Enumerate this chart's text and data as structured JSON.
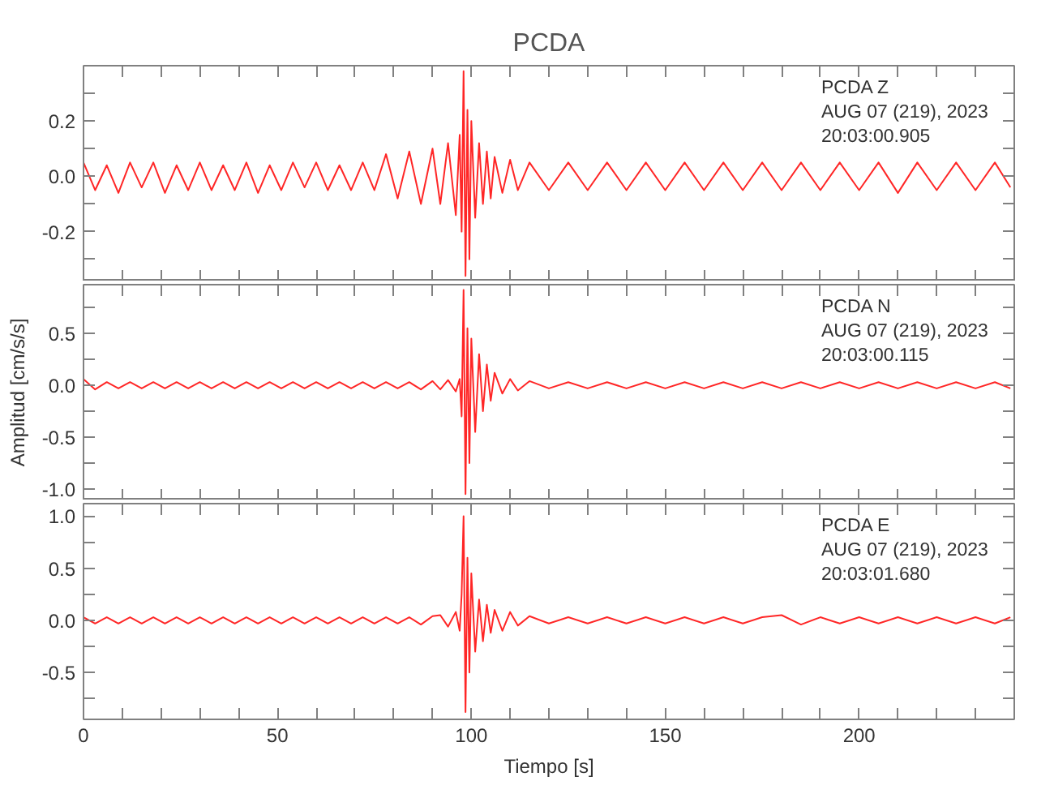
{
  "chart_data": [
    {
      "type": "line",
      "title": "PCDA",
      "tick_labels": "y",
      "grid": false,
      "marker": "none",
      "line_style": "solid",
      "annotations": [
        "PCDA   Z",
        "AUG 07 (219), 2023",
        "20:03:00.905"
      ],
      "xlim": [
        0,
        240
      ],
      "xticks": [
        0,
        {
          "value": 10,
          "label": null
        },
        {
          "value": 20,
          "label": null
        },
        {
          "value": 30,
          "label": null
        },
        {
          "value": 40,
          "label": null
        },
        50,
        {
          "value": 60,
          "label": null
        },
        {
          "value": 70,
          "label": null
        },
        {
          "value": 80,
          "label": null
        },
        {
          "value": 90,
          "label": null
        },
        100,
        {
          "value": 110,
          "label": null
        },
        {
          "value": 120,
          "label": null
        },
        {
          "value": 130,
          "label": null
        },
        {
          "value": 140,
          "label": null
        },
        150,
        {
          "value": 160,
          "label": null
        },
        {
          "value": 170,
          "label": null
        },
        {
          "value": 180,
          "label": null
        },
        {
          "value": 190,
          "label": null
        },
        200,
        {
          "value": 210,
          "label": null
        },
        {
          "value": 220,
          "label": null
        },
        {
          "value": 230,
          "label": null
        }
      ],
      "ylim": [
        -0.38,
        0.4
      ],
      "yticks": [
        {
          "value": -0.3,
          "label": null
        },
        {
          "value": -0.2,
          "label": "-0.2"
        },
        {
          "value": -0.1,
          "label": null
        },
        {
          "value": 0,
          "label": "0.0"
        },
        {
          "value": 0.1,
          "label": null
        },
        {
          "value": 0.2,
          "label": "0.2"
        },
        {
          "value": 0.3,
          "label": null
        }
      ],
      "x": [
        0,
        3,
        6,
        9,
        12,
        15,
        18,
        21,
        24,
        27,
        30,
        33,
        36,
        39,
        42,
        45,
        48,
        51,
        54,
        57,
        60,
        63,
        66,
        69,
        72,
        75,
        78,
        81,
        84,
        87,
        90,
        92,
        94,
        96,
        97,
        97.5,
        98,
        98.5,
        99,
        99.5,
        100,
        101,
        102,
        103,
        104,
        105,
        106,
        108,
        110,
        112,
        115,
        120,
        125,
        130,
        135,
        140,
        145,
        150,
        155,
        160,
        165,
        170,
        175,
        180,
        185,
        190,
        195,
        200,
        205,
        210,
        215,
        220,
        225,
        230,
        235,
        239
      ],
      "series": [
        {
          "color": "#ff0000",
          "values": [
            0.05,
            -0.05,
            0.04,
            -0.06,
            0.05,
            -0.04,
            0.05,
            -0.06,
            0.04,
            -0.05,
            0.05,
            -0.05,
            0.04,
            -0.05,
            0.05,
            -0.06,
            0.04,
            -0.05,
            0.05,
            -0.04,
            0.05,
            -0.05,
            0.04,
            -0.05,
            0.05,
            -0.05,
            0.08,
            -0.08,
            0.09,
            -0.1,
            0.1,
            -0.1,
            0.12,
            -0.14,
            0.15,
            -0.2,
            0.38,
            -0.36,
            0.24,
            -0.3,
            0.2,
            -0.15,
            0.12,
            -0.1,
            0.09,
            -0.08,
            0.07,
            -0.06,
            0.06,
            -0.05,
            0.05,
            -0.05,
            0.05,
            -0.05,
            0.05,
            -0.05,
            0.05,
            -0.05,
            0.05,
            -0.05,
            0.05,
            -0.05,
            0.05,
            -0.05,
            0.05,
            -0.05,
            0.05,
            -0.05,
            0.05,
            -0.06,
            0.05,
            -0.05,
            0.05,
            -0.05,
            0.05,
            -0.04
          ]
        }
      ]
    },
    {
      "type": "line",
      "ylabel": "Amplitud [cm/s/s]",
      "tick_labels": "y",
      "grid": false,
      "marker": "none",
      "line_style": "solid",
      "annotations": [
        "PCDA   N",
        "AUG 07 (219), 2023",
        "20:03:00.115"
      ],
      "xlim": [
        0,
        240
      ],
      "xticks": [
        0,
        {
          "value": 10,
          "label": null
        },
        {
          "value": 20,
          "label": null
        },
        {
          "value": 30,
          "label": null
        },
        {
          "value": 40,
          "label": null
        },
        50,
        {
          "value": 60,
          "label": null
        },
        {
          "value": 70,
          "label": null
        },
        {
          "value": 80,
          "label": null
        },
        {
          "value": 90,
          "label": null
        },
        100,
        {
          "value": 110,
          "label": null
        },
        {
          "value": 120,
          "label": null
        },
        {
          "value": 130,
          "label": null
        },
        {
          "value": 140,
          "label": null
        },
        150,
        {
          "value": 160,
          "label": null
        },
        {
          "value": 170,
          "label": null
        },
        {
          "value": 180,
          "label": null
        },
        {
          "value": 190,
          "label": null
        },
        200,
        {
          "value": 210,
          "label": null
        },
        {
          "value": 220,
          "label": null
        },
        {
          "value": 230,
          "label": null
        }
      ],
      "ylim": [
        -1.11,
        0.97
      ],
      "yticks": [
        {
          "value": -1,
          "label": "-1.0"
        },
        {
          "value": -0.75,
          "label": null
        },
        {
          "value": -0.5,
          "label": "-0.5"
        },
        {
          "value": -0.25,
          "label": null
        },
        {
          "value": 0,
          "label": "0.0"
        },
        {
          "value": 0.25,
          "label": null
        },
        {
          "value": 0.5,
          "label": "0.5"
        },
        {
          "value": 0.75,
          "label": null
        }
      ],
      "x": [
        0,
        3,
        6,
        9,
        12,
        15,
        18,
        21,
        24,
        27,
        30,
        33,
        36,
        39,
        42,
        45,
        48,
        51,
        54,
        57,
        60,
        63,
        66,
        69,
        72,
        75,
        78,
        81,
        84,
        87,
        90,
        92,
        94,
        96,
        97,
        97.5,
        98,
        98.5,
        99,
        99.5,
        100,
        101,
        102,
        103,
        104,
        105,
        106,
        108,
        110,
        112,
        115,
        120,
        125,
        130,
        135,
        140,
        145,
        150,
        155,
        160,
        165,
        170,
        175,
        180,
        185,
        190,
        195,
        200,
        205,
        210,
        215,
        220,
        225,
        230,
        235,
        239
      ],
      "series": [
        {
          "color": "#ff0000",
          "values": [
            0.06,
            -0.04,
            0.03,
            -0.03,
            0.03,
            -0.03,
            0.03,
            -0.03,
            0.03,
            -0.03,
            0.03,
            -0.03,
            0.03,
            -0.03,
            0.03,
            -0.03,
            0.03,
            -0.03,
            0.03,
            -0.03,
            0.03,
            -0.03,
            0.03,
            -0.03,
            0.03,
            -0.03,
            0.03,
            -0.03,
            0.03,
            -0.04,
            0.04,
            -0.04,
            0.05,
            -0.06,
            0.06,
            -0.3,
            0.92,
            -1.05,
            0.55,
            -0.75,
            0.45,
            -0.45,
            0.3,
            -0.25,
            0.2,
            -0.15,
            0.12,
            -0.08,
            0.06,
            -0.05,
            0.04,
            -0.03,
            0.03,
            -0.03,
            0.03,
            -0.03,
            0.03,
            -0.03,
            0.03,
            -0.03,
            0.03,
            -0.03,
            0.03,
            -0.03,
            0.03,
            -0.03,
            0.03,
            -0.03,
            0.03,
            -0.03,
            0.03,
            -0.03,
            0.03,
            -0.03,
            0.03,
            -0.03
          ]
        }
      ]
    },
    {
      "type": "line",
      "xlabel": "Tiempo [s]",
      "grid": false,
      "marker": "none",
      "line_style": "solid",
      "annotations": [
        "PCDA   E",
        "AUG 07 (219), 2023",
        "20:03:01.680"
      ],
      "xlim": [
        0,
        240
      ],
      "xticks": [
        0,
        {
          "value": 10,
          "label": null
        },
        {
          "value": 20,
          "label": null
        },
        {
          "value": 30,
          "label": null
        },
        {
          "value": 40,
          "label": null
        },
        50,
        {
          "value": 60,
          "label": null
        },
        {
          "value": 70,
          "label": null
        },
        {
          "value": 80,
          "label": null
        },
        {
          "value": 90,
          "label": null
        },
        100,
        {
          "value": 110,
          "label": null
        },
        {
          "value": 120,
          "label": null
        },
        {
          "value": 130,
          "label": null
        },
        {
          "value": 140,
          "label": null
        },
        150,
        {
          "value": 160,
          "label": null
        },
        {
          "value": 170,
          "label": null
        },
        {
          "value": 180,
          "label": null
        },
        {
          "value": 190,
          "label": null
        },
        200,
        {
          "value": 210,
          "label": null
        },
        {
          "value": 220,
          "label": null
        },
        {
          "value": 230,
          "label": null
        }
      ],
      "ylim": [
        -0.95,
        1.12
      ],
      "yticks": [
        {
          "value": -0.75,
          "label": null
        },
        {
          "value": -0.5,
          "label": "-0.5"
        },
        {
          "value": -0.25,
          "label": null
        },
        {
          "value": 0,
          "label": "0.0"
        },
        {
          "value": 0.25,
          "label": null
        },
        {
          "value": 0.5,
          "label": "0.5"
        },
        {
          "value": 0.75,
          "label": null
        },
        {
          "value": 1,
          "label": "1.0"
        }
      ],
      "x": [
        0,
        3,
        6,
        9,
        12,
        15,
        18,
        21,
        24,
        27,
        30,
        33,
        36,
        39,
        42,
        45,
        48,
        51,
        54,
        57,
        60,
        63,
        66,
        69,
        72,
        75,
        78,
        81,
        84,
        87,
        90,
        92,
        94,
        96,
        97,
        97.5,
        98,
        98.5,
        99,
        99.5,
        100,
        101,
        102,
        103,
        104,
        105,
        106,
        108,
        110,
        112,
        115,
        120,
        125,
        130,
        135,
        140,
        145,
        150,
        155,
        160,
        165,
        170,
        175,
        180,
        185,
        190,
        195,
        200,
        205,
        210,
        215,
        220,
        225,
        230,
        235,
        239
      ],
      "series": [
        {
          "color": "#ff0000",
          "values": [
            0.03,
            -0.03,
            0.03,
            -0.03,
            0.03,
            -0.03,
            0.03,
            -0.03,
            0.03,
            -0.03,
            0.03,
            -0.03,
            0.03,
            -0.03,
            0.03,
            -0.03,
            0.03,
            -0.03,
            0.03,
            -0.03,
            0.03,
            -0.03,
            0.03,
            -0.03,
            0.03,
            -0.03,
            0.03,
            -0.03,
            0.03,
            -0.04,
            0.04,
            0.05,
            -0.06,
            0.08,
            -0.1,
            0.25,
            1.0,
            -0.88,
            0.6,
            -0.5,
            0.45,
            -0.3,
            0.2,
            -0.2,
            0.15,
            -0.12,
            0.1,
            -0.1,
            0.08,
            -0.05,
            0.04,
            -0.03,
            0.03,
            -0.03,
            0.03,
            -0.03,
            0.03,
            -0.03,
            0.03,
            -0.03,
            0.03,
            -0.03,
            0.03,
            0.05,
            -0.04,
            0.03,
            -0.03,
            0.03,
            -0.03,
            0.03,
            -0.03,
            0.03,
            -0.03,
            0.03,
            -0.03,
            0.03
          ]
        }
      ]
    }
  ]
}
